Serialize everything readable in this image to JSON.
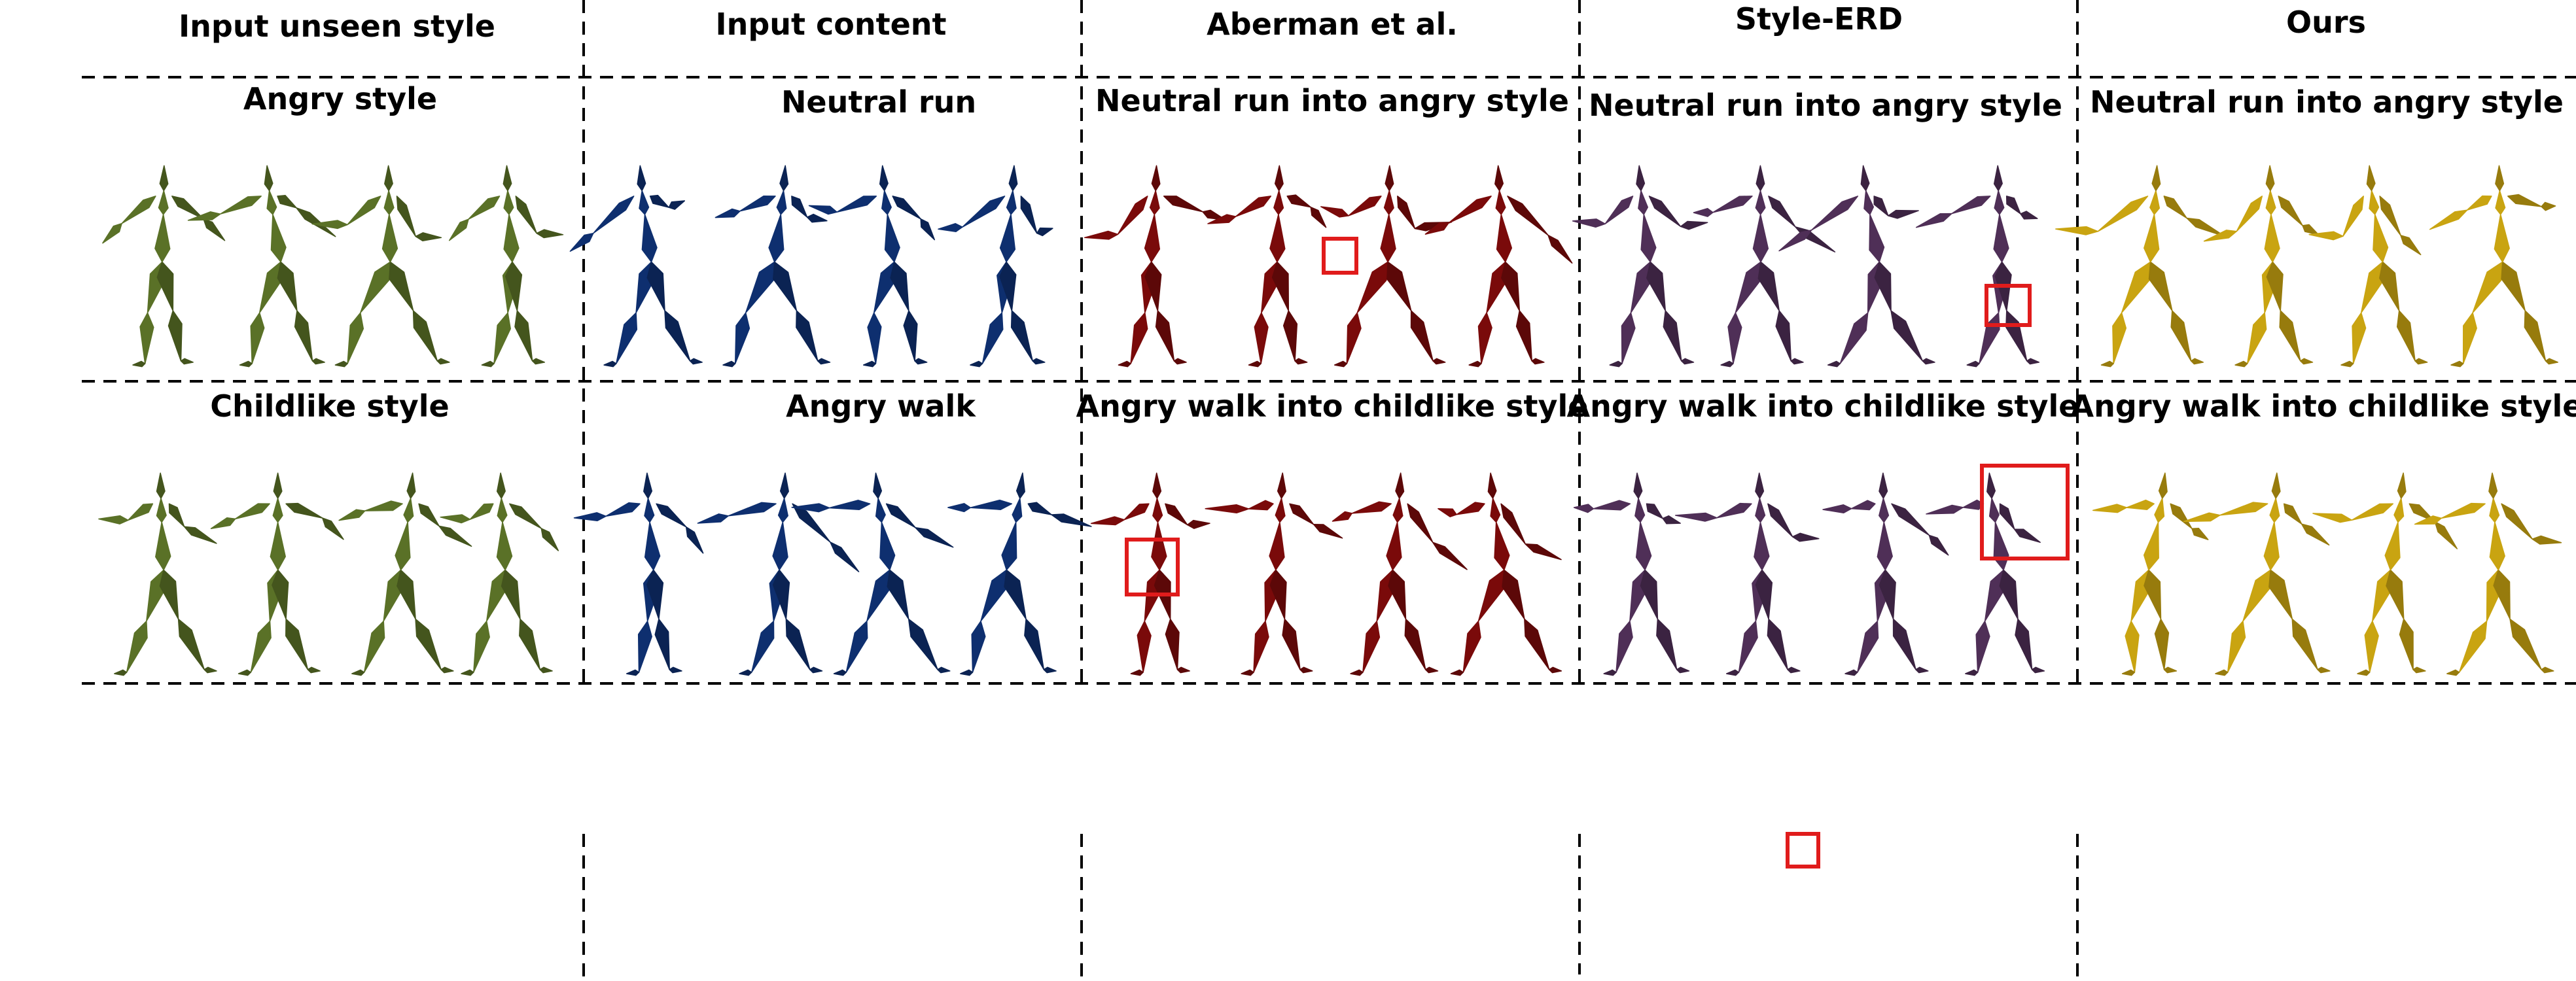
{
  "figure": {
    "columns": [
      {
        "key": "style",
        "header": "Input unseen style",
        "color": "#5a7127"
      },
      {
        "key": "content",
        "header": "Input content",
        "color": "#0e2f6f"
      },
      {
        "key": "aberman",
        "header": "Aberman et al.",
        "color": "#7a0a0a"
      },
      {
        "key": "erd",
        "header": "Style-ERD",
        "color": "#4f2f57"
      },
      {
        "key": "ours",
        "header": "Ours",
        "color": "#c9a411"
      }
    ],
    "rows": [
      {
        "titles": [
          "Angry style",
          "Neutral run",
          "Neutral run into angry style",
          "Neutral run into angry style",
          "Neutral run into angry style"
        ]
      },
      {
        "titles": [
          "Childlike style",
          "Angry walk",
          "Angry walk into childlike style",
          "Angry walk into childlike style",
          "Angry walk into childlike style"
        ]
      }
    ],
    "figures_per_cell": 4,
    "highlight_color": "#e01c1c"
  }
}
